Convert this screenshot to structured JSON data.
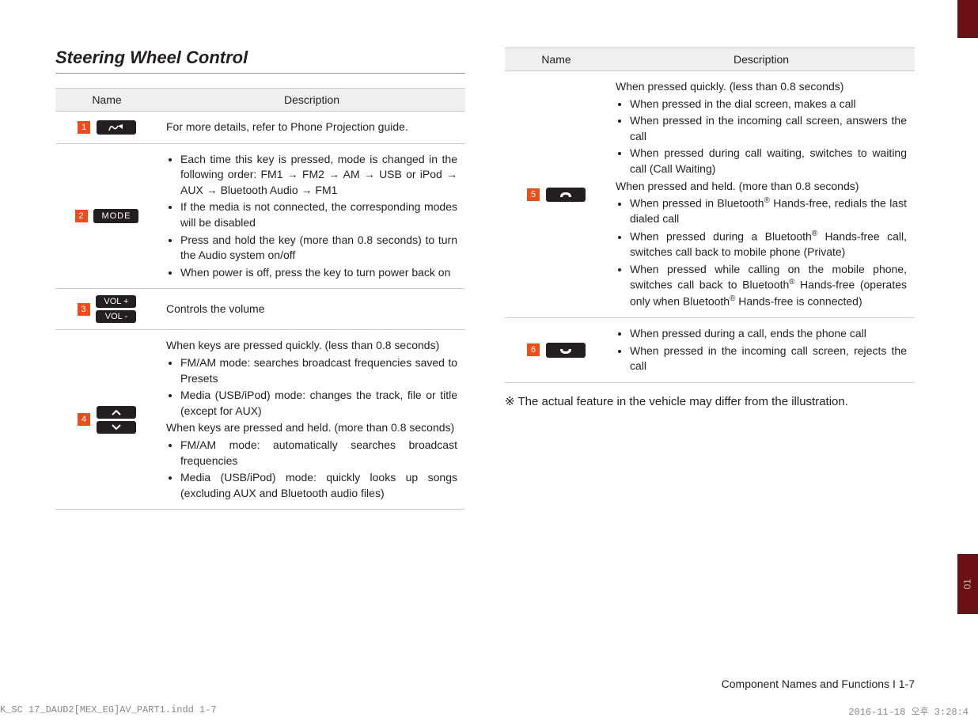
{
  "colors": {
    "badge": "#e94e1b",
    "key_bg": "#231f20",
    "sidebar": "#6b1014",
    "header_bg": "#efefef",
    "border": "#cccccc"
  },
  "section_title": "Steering Wheel Control",
  "headers": {
    "name": "Name",
    "desc": "Description"
  },
  "rows_left": [
    {
      "num": "1",
      "icon": "voice",
      "desc_plain": "For more details, refer to Phone Projection guide."
    },
    {
      "num": "2",
      "icon": "mode",
      "bullets": [
        "Each time this key is pressed, mode is changed in the following order: FM1 → FM2 → AM → USB or iPod → AUX → Bluetooth Audio → FM1",
        "If the media is not connected, the corresponding modes will be disabled",
        "Press and hold the key (more than 0.8 seconds) to turn the Audio system on/off",
        "When power is off, press the key to turn power back on"
      ]
    },
    {
      "num": "3",
      "icon": "vol",
      "desc_plain": "Controls the volume"
    },
    {
      "num": "4",
      "icon": "updown",
      "intro1": "When keys are pressed quickly. (less than 0.8 seconds)",
      "bullets1": [
        "FM/AM mode: searches broadcast frequencies saved to Presets",
        "Media (USB/iPod) mode: changes the track, file or title (except for AUX)"
      ],
      "intro2": "When keys are pressed and held. (more than 0.8 seconds)",
      "bullets2": [
        "FM/AM mode: automatically searches broadcast frequencies",
        "Media (USB/iPod) mode: quickly looks up songs (excluding AUX and Bluetooth audio files)"
      ]
    }
  ],
  "rows_right": [
    {
      "num": "5",
      "icon": "call",
      "intro1": "When pressed quickly. (less than 0.8 seconds)",
      "bullets1": [
        "When pressed in the dial screen, makes a call",
        "When pressed in the incoming call screen, answers the call",
        "When pressed during call waiting, switches to waiting call (Call Waiting)"
      ],
      "intro2": "When pressed and held. (more than 0.8 seconds)",
      "bullets2_html": [
        "When pressed in Bluetooth<sup>®</sup> Hands-free, redials the last dialed call",
        "When pressed during a Bluetooth<sup>®</sup> Hands-free call, switches call back to mobile phone (Private)",
        "When pressed while calling on the mobile phone, switches call back to Bluetooth<sup>®</sup> Hands-free (operates only when Bluetooth<sup>®</sup> Hands-free is connected)"
      ]
    },
    {
      "num": "6",
      "icon": "end",
      "bullets": [
        "When pressed during a call, ends the phone call",
        "When pressed in the incoming call screen, rejects the call"
      ]
    }
  ],
  "note": "※ The actual feature in the vehicle may differ from the illustration.",
  "footer_right": "Component Names and Functions I 1-7",
  "sidebar_tab": "01",
  "print_left": "K_SC 17_DAUD2[MEX_EG]AV_PART1.indd   1-7",
  "print_right": "2016-11-18   오후 3:28:4"
}
